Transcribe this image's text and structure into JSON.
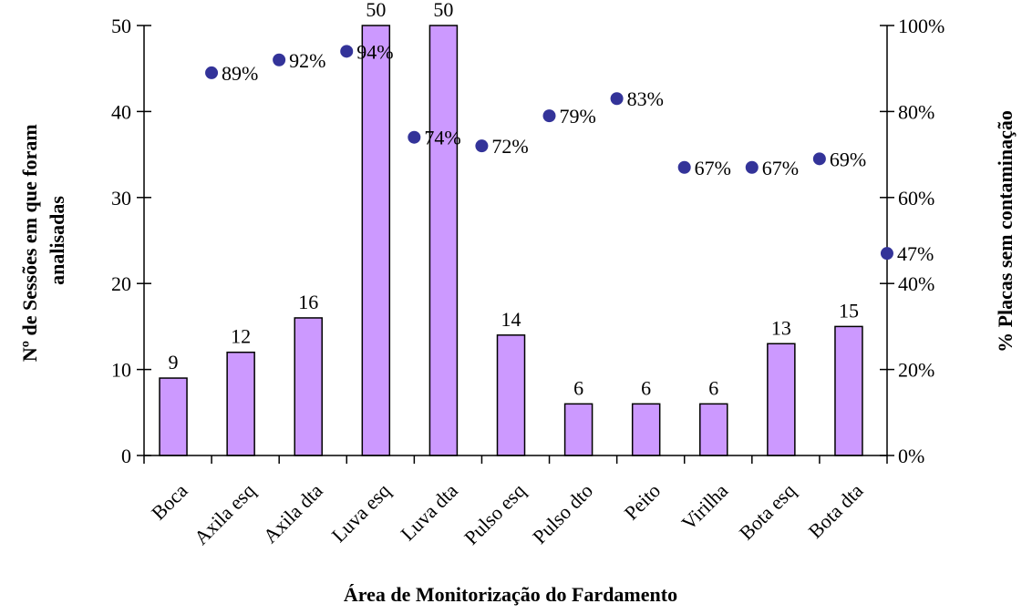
{
  "chart_data": {
    "type": "bar",
    "categories": [
      "Boca",
      "Axila esq",
      "Axila dta",
      "Luva esq",
      "Luva dta",
      "Pulso esq",
      "Pulso dto",
      "Peito",
      "Virilha",
      "Bota esq",
      "Bota dta"
    ],
    "series": [
      {
        "type": "bar",
        "axis": "left",
        "values": [
          9,
          12,
          16,
          50,
          50,
          14,
          6,
          6,
          6,
          13,
          15
        ],
        "labels": [
          "9",
          "12",
          "16",
          "50",
          "50",
          "14",
          "6",
          "6",
          "6",
          "13",
          "15"
        ],
        "color": "#cc99ff"
      },
      {
        "type": "scatter",
        "axis": "right",
        "values": [
          89,
          92,
          94,
          74,
          72,
          79,
          83,
          67,
          67,
          69,
          47
        ],
        "labels": [
          "89%",
          "92%",
          "94%",
          "74%",
          "72%",
          "79%",
          "83%",
          "67%",
          "67%",
          "69%",
          "47%"
        ],
        "color": "#333399"
      }
    ],
    "xlabel": "Área de Monitorização do Fardamento",
    "ylabel_lines": [
      "Nº de Sessões em que foram",
      "analisadas"
    ],
    "y2label": "% Placas sem contaminação",
    "ylim": [
      0,
      50
    ],
    "y2lim": [
      0,
      100
    ],
    "y_ticks": [
      "0",
      "10",
      "20",
      "30",
      "40",
      "50"
    ],
    "y2_ticks": [
      "0%",
      "20%",
      "40%",
      "60%",
      "80%",
      "100%"
    ],
    "grid": false,
    "legend": "none"
  }
}
